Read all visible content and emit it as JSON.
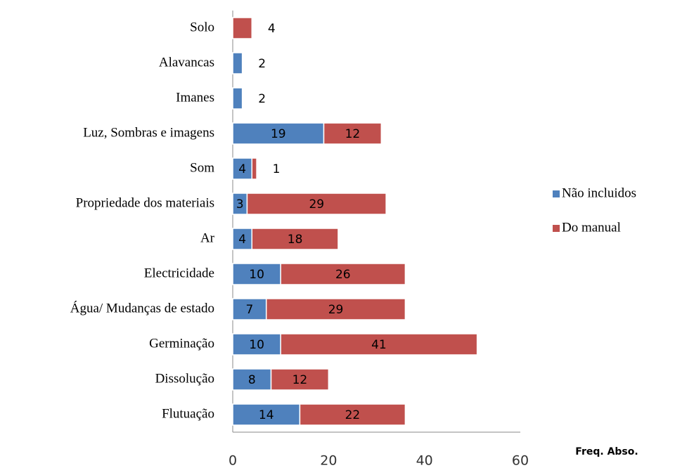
{
  "chart_data": {
    "type": "stacked-barh",
    "categories": [
      "Solo",
      "Alavancas",
      "Imanes",
      "Luz, Sombras e imagens",
      "Som",
      "Propriedade dos materiais",
      "Ar",
      "Electricidade",
      "Água/ Mudanças de estado",
      "Germinação",
      "Dissolução",
      "Flutuação"
    ],
    "series": [
      {
        "name": "Não incluidos",
        "color": "#4f81bd",
        "values": [
          null,
          2,
          2,
          19,
          4,
          3,
          4,
          10,
          7,
          10,
          8,
          14
        ]
      },
      {
        "name": "Do manual",
        "color": "#c0504d",
        "values": [
          4,
          null,
          null,
          12,
          1,
          29,
          18,
          26,
          29,
          41,
          12,
          22
        ]
      }
    ],
    "xlim": [
      0,
      60
    ],
    "xticks": [
      0,
      20,
      40,
      60
    ],
    "xlabel": "Freq. Abso.",
    "legend": "right"
  }
}
